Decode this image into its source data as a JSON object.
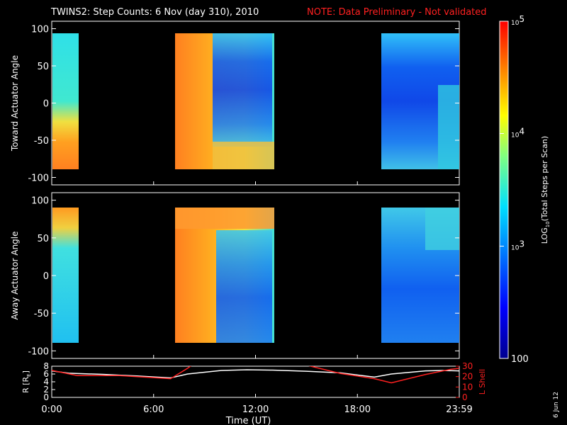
{
  "title": "TWINS2: Step Counts:  6 Nov (day 310), 2010",
  "note": "NOTE: Data Preliminary - Not validated",
  "side_date": "6 Jun 12",
  "colors": {
    "background": "#000000",
    "axis": "#ffffff",
    "note": "#ff2020",
    "lshell": "#ff2020",
    "radius": "#ffffff"
  },
  "chart_data": [
    {
      "type": "heatmap",
      "panel": "top",
      "ylabel": "Toward Actuator Angle",
      "ylim": [
        -110,
        110
      ],
      "yticks": [
        -100,
        -50,
        0,
        50,
        100
      ],
      "xlim": [
        0,
        24
      ],
      "y_data_range": [
        -90,
        90
      ],
      "data_intervals_ut": [
        [
          0,
          1.3
        ],
        [
          7.2,
          13.2
        ],
        [
          19.3,
          24
        ]
      ]
    },
    {
      "type": "heatmap",
      "panel": "middle",
      "ylabel": "Away Actuator Angle",
      "ylim": [
        -110,
        110
      ],
      "yticks": [
        -100,
        -50,
        0,
        50,
        100
      ],
      "xlim": [
        0,
        24
      ],
      "y_data_range": [
        -90,
        90
      ],
      "data_intervals_ut": [
        [
          0,
          1.3
        ],
        [
          7.2,
          13.2
        ],
        [
          19.3,
          24
        ]
      ]
    },
    {
      "type": "line",
      "panel": "bottom",
      "xlabel": "Time (UT)",
      "xticks": [
        "0:00",
        "6:00",
        "12:00",
        "18:00",
        "23:59"
      ],
      "xtick_values": [
        0,
        6,
        12,
        18,
        24
      ],
      "xlim": [
        0,
        24
      ],
      "left_axis": {
        "label": "R [R",
        "label_sub": "E",
        "label_end": "]",
        "ylim": [
          0,
          8
        ],
        "yticks": [
          0,
          2,
          4,
          6,
          8
        ]
      },
      "right_axis": {
        "label": "L Shell",
        "ylim": [
          0,
          30
        ],
        "yticks": [
          0,
          10,
          20,
          30
        ]
      },
      "series": [
        {
          "name": "R [RE]",
          "axis": "left",
          "x": [
            0,
            1,
            3,
            5,
            7,
            8,
            10,
            11.5,
            13,
            15,
            17,
            19,
            20,
            22,
            23,
            24
          ],
          "y": [
            6.8,
            6.2,
            5.9,
            5.5,
            5.0,
            6.0,
            6.9,
            7.1,
            7.0,
            6.7,
            6.3,
            5.2,
            6.0,
            6.8,
            6.9,
            6.8
          ]
        },
        {
          "name": "L Shell",
          "axis": "right",
          "x": [
            0,
            1.5,
            4,
            7,
            8,
            9
          ],
          "y": [
            26,
            21,
            21,
            18,
            28,
            40
          ]
        },
        {
          "name": "L Shell (2)",
          "axis": "right",
          "x": [
            14.5,
            17,
            19,
            20,
            22,
            23.5,
            24
          ],
          "y": [
            33,
            23,
            18,
            14,
            22,
            27,
            28
          ]
        }
      ]
    }
  ],
  "colorbar": {
    "label": "LOG",
    "label_sub": "10",
    "label_rest": "(Total Steps per Scan)",
    "ticks": [
      {
        "value": 2,
        "base": "10",
        "exp": "5"
      },
      {
        "value": 1.667,
        "base": "10",
        "exp": "4"
      },
      {
        "value": 1.333,
        "base": "10",
        "exp": "3"
      },
      {
        "value": 1,
        "base": "100",
        "exp": ""
      }
    ]
  }
}
